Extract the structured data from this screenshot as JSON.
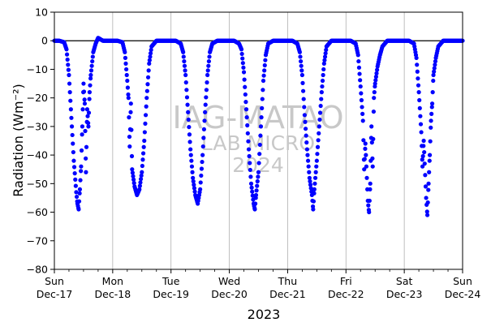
{
  "chart_data": {
    "type": "scatter",
    "title": "",
    "xlabel": "2023",
    "ylabel": "Radiation (Wm⁻²)",
    "ylim": [
      -80,
      10
    ],
    "yticks": [
      10,
      0,
      -10,
      -20,
      -30,
      -40,
      -50,
      -60,
      -70,
      -80
    ],
    "xlim": [
      "2023-12-17",
      "2023-12-24"
    ],
    "xticks": [
      {
        "day": "Sun",
        "date": "Dec-17"
      },
      {
        "day": "Mon",
        "date": "Dec-18"
      },
      {
        "day": "Tue",
        "date": "Dec-19"
      },
      {
        "day": "Wed",
        "date": "Dec-20"
      },
      {
        "day": "Thu",
        "date": "Dec-21"
      },
      {
        "day": "Fri",
        "date": "Dec-22"
      },
      {
        "day": "Sat",
        "date": "Dec-23"
      },
      {
        "day": "Sun",
        "date": "Dec-24"
      }
    ],
    "grid": "vertical",
    "zero_line": true,
    "series": [
      {
        "color": "#0000ff",
        "marker": "circle",
        "daily_minima": [
          {
            "date": "2023-12-17",
            "min": -59
          },
          {
            "date": "2023-12-18",
            "min": -54
          },
          {
            "date": "2023-12-19",
            "min": -57
          },
          {
            "date": "2023-12-20",
            "min": -59
          },
          {
            "date": "2023-12-21",
            "min": -59
          },
          {
            "date": "2023-12-22",
            "min": -60
          },
          {
            "date": "2023-12-23",
            "min": -61
          }
        ],
        "points": [
          [
            "2023-12-17 00:00",
            0
          ],
          [
            "2023-12-17 02:00",
            0
          ],
          [
            "2023-12-17 04:00",
            -0.5
          ],
          [
            "2023-12-17 05:00",
            -3
          ],
          [
            "2023-12-17 06:00",
            -12
          ],
          [
            "2023-12-17 07:00",
            -27
          ],
          [
            "2023-12-17 08:00",
            -42
          ],
          [
            "2023-12-17 09:00",
            -53
          ],
          [
            "2023-12-17 09:30",
            -57
          ],
          [
            "2023-12-17 10:00",
            -59
          ],
          [
            "2023-12-17 10:30",
            -52
          ],
          [
            "2023-12-17 11:00",
            -44
          ],
          [
            "2023-12-17 11:30",
            -30
          ],
          [
            "2023-12-17 12:00",
            -15
          ],
          [
            "2023-12-17 12:30",
            -22
          ],
          [
            "2023-12-17 13:00",
            -46
          ],
          [
            "2023-12-17 13:30",
            -24
          ],
          [
            "2023-12-17 14:00",
            -30
          ],
          [
            "2023-12-17 14:30",
            -18
          ],
          [
            "2023-12-17 15:00",
            -12
          ],
          [
            "2023-12-17 16:00",
            -4
          ],
          [
            "2023-12-17 17:00",
            -1
          ],
          [
            "2023-12-17 18:00",
            1
          ],
          [
            "2023-12-17 20:00",
            0
          ],
          [
            "2023-12-18 00:00",
            0
          ],
          [
            "2023-12-18 02:00",
            0
          ],
          [
            "2023-12-18 04:00",
            -0.5
          ],
          [
            "2023-12-18 05:00",
            -4
          ],
          [
            "2023-12-18 06:00",
            -14
          ],
          [
            "2023-12-18 06:30",
            -20
          ],
          [
            "2023-12-18 07:00",
            -37
          ],
          [
            "2023-12-18 07:30",
            -22
          ],
          [
            "2023-12-18 08:00",
            -45
          ],
          [
            "2023-12-18 09:00",
            -51
          ],
          [
            "2023-12-18 10:00",
            -54
          ],
          [
            "2023-12-18 11:00",
            -52
          ],
          [
            "2023-12-18 12:00",
            -46
          ],
          [
            "2023-12-18 13:00",
            -35
          ],
          [
            "2023-12-18 14:00",
            -20
          ],
          [
            "2023-12-18 15:00",
            -8
          ],
          [
            "2023-12-18 16:00",
            -2
          ],
          [
            "2023-12-18 18:00",
            0
          ],
          [
            "2023-12-18 20:00",
            0
          ],
          [
            "2023-12-19 00:00",
            0
          ],
          [
            "2023-12-19 02:00",
            0
          ],
          [
            "2023-12-19 04:00",
            -1
          ],
          [
            "2023-12-19 05:00",
            -4
          ],
          [
            "2023-12-19 06:00",
            -12
          ],
          [
            "2023-12-19 07:00",
            -25
          ],
          [
            "2023-12-19 08:00",
            -38
          ],
          [
            "2023-12-19 09:00",
            -48
          ],
          [
            "2023-12-19 10:00",
            -54
          ],
          [
            "2023-12-19 11:00",
            -57
          ],
          [
            "2023-12-19 12:00",
            -52
          ],
          [
            "2023-12-19 13:00",
            -40
          ],
          [
            "2023-12-19 14:00",
            -25
          ],
          [
            "2023-12-19 15:00",
            -12
          ],
          [
            "2023-12-19 16:00",
            -4
          ],
          [
            "2023-12-19 17:00",
            -1
          ],
          [
            "2023-12-19 19:00",
            0
          ],
          [
            "2023-12-20 00:00",
            0
          ],
          [
            "2023-12-20 02:00",
            0
          ],
          [
            "2023-12-20 04:00",
            -1
          ],
          [
            "2023-12-20 05:00",
            -3
          ],
          [
            "2023-12-20 06:00",
            -11
          ],
          [
            "2023-12-20 07:00",
            -24
          ],
          [
            "2023-12-20 08:00",
            -38
          ],
          [
            "2023-12-20 09:00",
            -50
          ],
          [
            "2023-12-20 10:00",
            -57
          ],
          [
            "2023-12-20 10:30",
            -59
          ],
          [
            "2023-12-20 11:00",
            -54
          ],
          [
            "2023-12-20 12:00",
            -46
          ],
          [
            "2023-12-20 13:00",
            -30
          ],
          [
            "2023-12-20 14:00",
            -14
          ],
          [
            "2023-12-20 15:00",
            -5
          ],
          [
            "2023-12-20 16:00",
            -1
          ],
          [
            "2023-12-20 18:00",
            0
          ],
          [
            "2023-12-21 00:00",
            0
          ],
          [
            "2023-12-21 02:00",
            0
          ],
          [
            "2023-12-21 04:00",
            -1
          ],
          [
            "2023-12-21 05:00",
            -4
          ],
          [
            "2023-12-21 06:00",
            -12
          ],
          [
            "2023-12-21 07:00",
            -26
          ],
          [
            "2023-12-21 08:00",
            -38
          ],
          [
            "2023-12-21 09:00",
            -48
          ],
          [
            "2023-12-21 10:00",
            -54
          ],
          [
            "2023-12-21 10:30",
            -59
          ],
          [
            "2023-12-21 11:00",
            -52
          ],
          [
            "2023-12-21 12:00",
            -42
          ],
          [
            "2023-12-21 13:00",
            -30
          ],
          [
            "2023-12-21 14:00",
            -18
          ],
          [
            "2023-12-21 15:00",
            -8
          ],
          [
            "2023-12-21 16:00",
            -2
          ],
          [
            "2023-12-21 18:00",
            0
          ],
          [
            "2023-12-22 00:00",
            0
          ],
          [
            "2023-12-22 02:00",
            0
          ],
          [
            "2023-12-22 04:00",
            -1
          ],
          [
            "2023-12-22 05:00",
            -5
          ],
          [
            "2023-12-22 06:00",
            -16
          ],
          [
            "2023-12-22 07:00",
            -28
          ],
          [
            "2023-12-22 07:30",
            -45
          ],
          [
            "2023-12-22 08:00",
            -36
          ],
          [
            "2023-12-22 09:00",
            -56
          ],
          [
            "2023-12-22 09:30",
            -60
          ],
          [
            "2023-12-22 10:00",
            -50
          ],
          [
            "2023-12-22 10:30",
            -30
          ],
          [
            "2023-12-22 11:00",
            -44
          ],
          [
            "2023-12-22 11:30",
            -20
          ],
          [
            "2023-12-22 12:00",
            -15
          ],
          [
            "2023-12-22 13:00",
            -9
          ],
          [
            "2023-12-22 14:00",
            -5
          ],
          [
            "2023-12-22 15:00",
            -2
          ],
          [
            "2023-12-22 17:00",
            0
          ],
          [
            "2023-12-23 00:00",
            0
          ],
          [
            "2023-12-23 02:00",
            0
          ],
          [
            "2023-12-23 04:00",
            -1
          ],
          [
            "2023-12-23 05:00",
            -6
          ],
          [
            "2023-12-23 06:00",
            -18
          ],
          [
            "2023-12-23 07:00",
            -32
          ],
          [
            "2023-12-23 07:30",
            -44
          ],
          [
            "2023-12-23 08:00",
            -35
          ],
          [
            "2023-12-23 09:00",
            -55
          ],
          [
            "2023-12-23 09:30",
            -61
          ],
          [
            "2023-12-23 10:00",
            -50
          ],
          [
            "2023-12-23 10:30",
            -40
          ],
          [
            "2023-12-23 11:00",
            -28
          ],
          [
            "2023-12-23 11:30",
            -22
          ],
          [
            "2023-12-23 12:00",
            -12
          ],
          [
            "2023-12-23 13:00",
            -6
          ],
          [
            "2023-12-23 14:00",
            -2
          ],
          [
            "2023-12-23 16:00",
            0
          ],
          [
            "2023-12-23 20:00",
            0
          ],
          [
            "2023-12-24 00:00",
            0
          ]
        ]
      }
    ],
    "watermark": [
      "IAG-MATAO",
      "LAB MICRO",
      "2024"
    ]
  }
}
